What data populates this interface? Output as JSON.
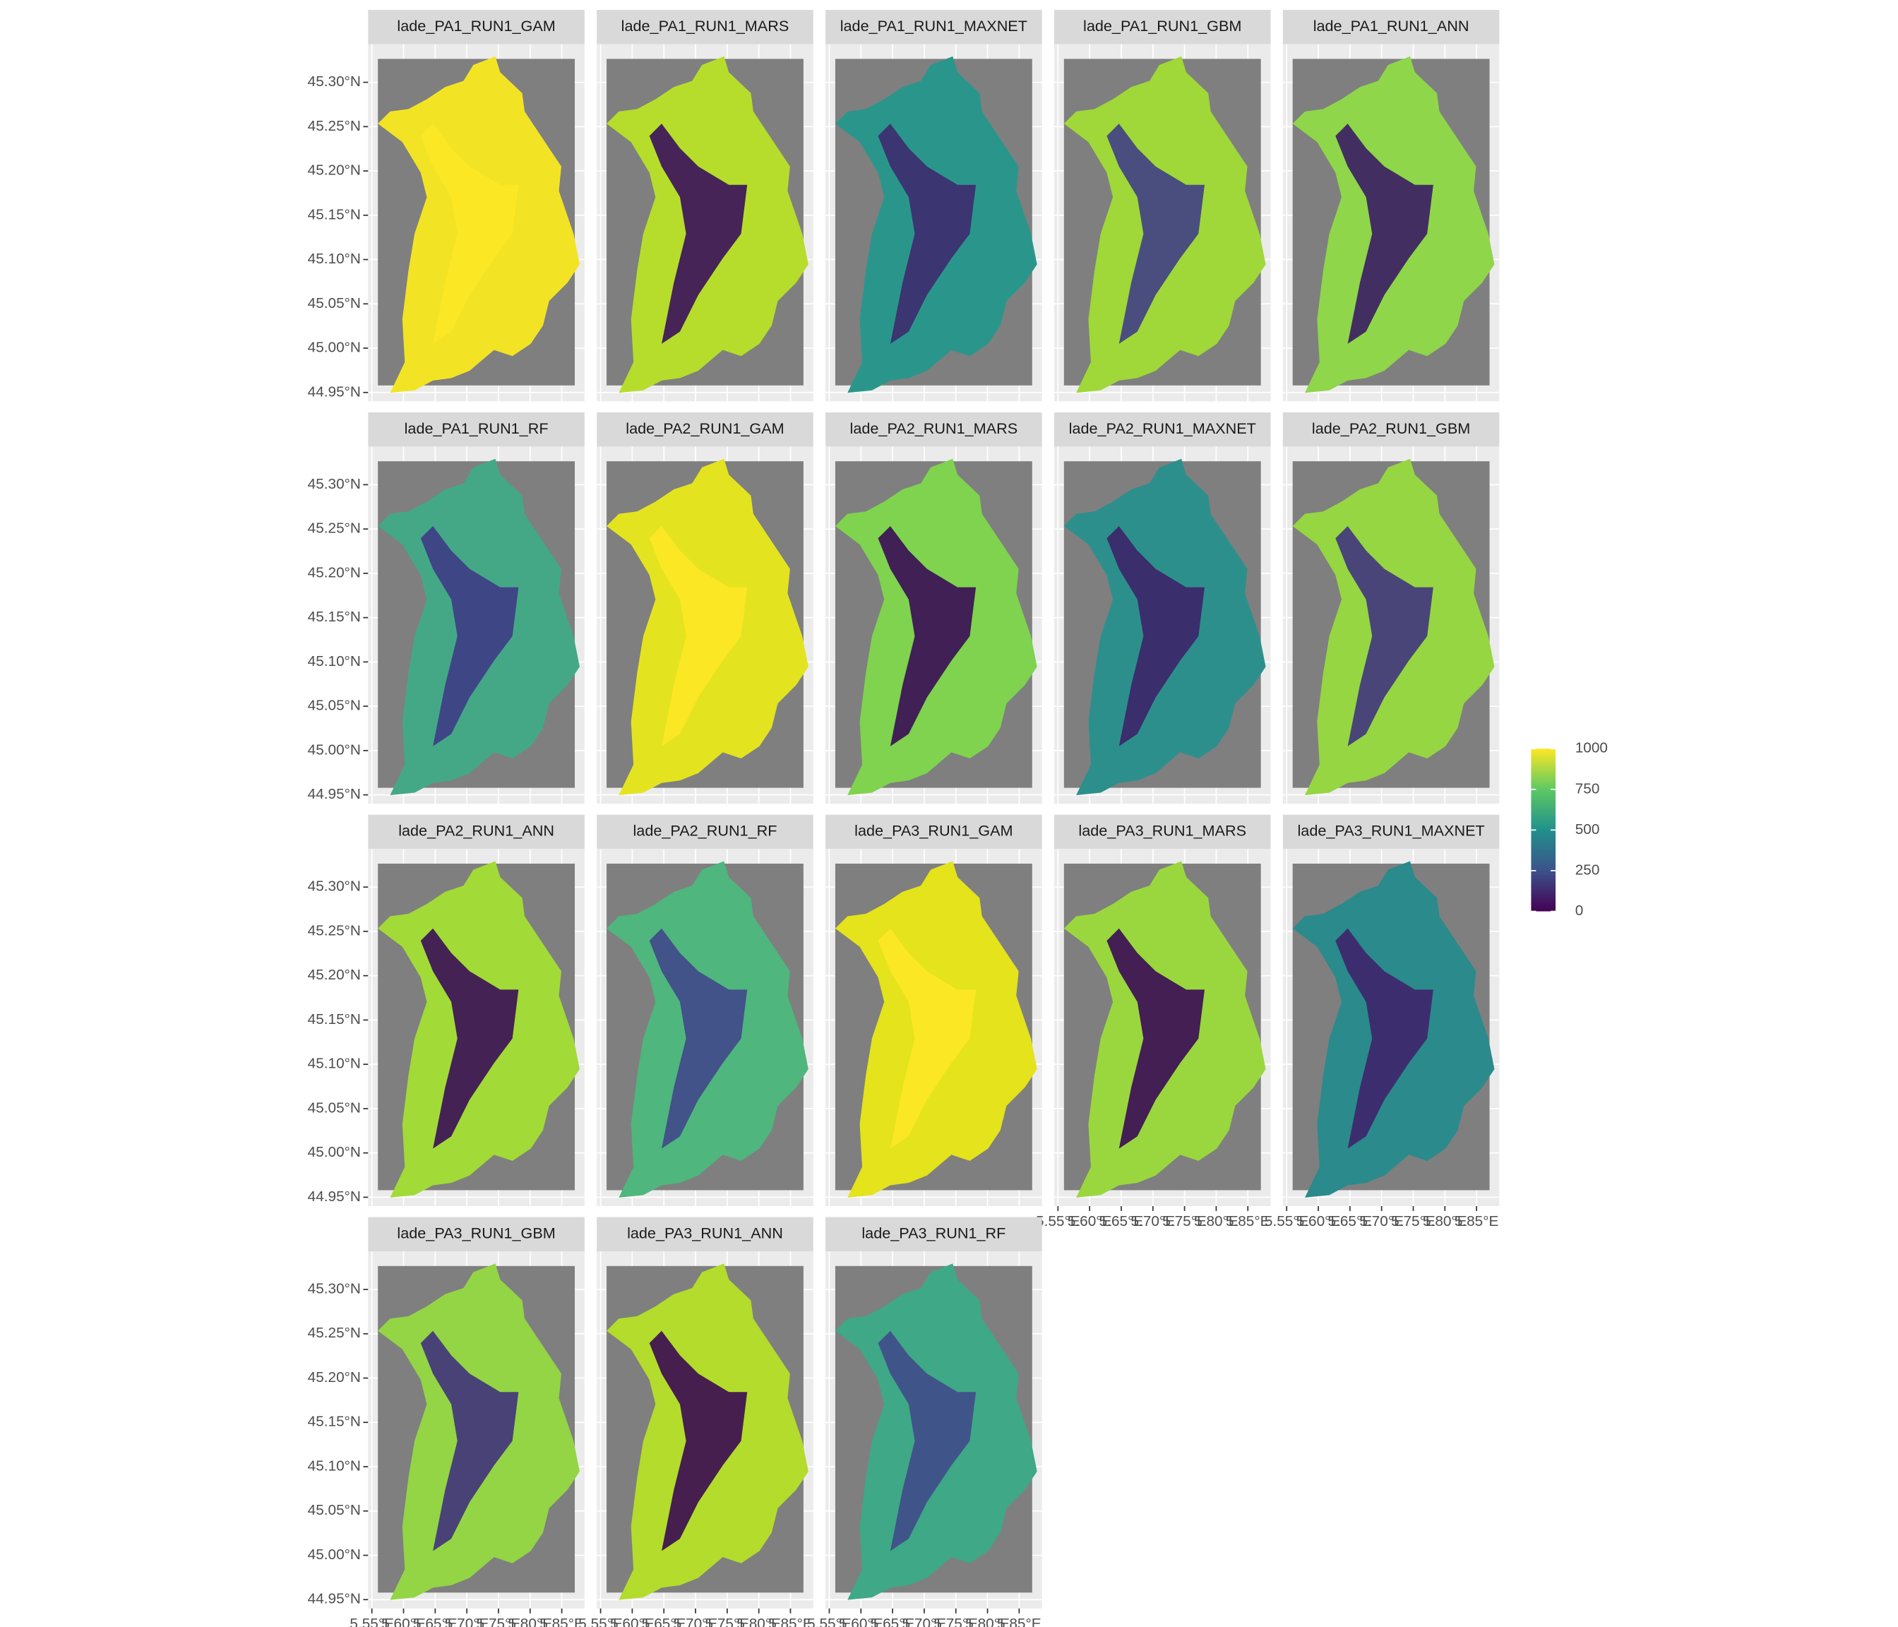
{
  "chart_data": {
    "type": "raster-facets",
    "panels": [
      {
        "title": "lade_PA1_RUN1_GAM",
        "color": "#f2e424",
        "valley": "#fde725"
      },
      {
        "title": "lade_PA1_RUN1_MARS",
        "color": "#b6dd2b",
        "valley": "#3b0f5c"
      },
      {
        "title": "lade_PA1_RUN1_MAXNET",
        "color": "#2a968b",
        "valley": "#3d2a6e"
      },
      {
        "title": "lade_PA1_RUN1_GBM",
        "color": "#9fd838",
        "valley": "#3f3f87"
      },
      {
        "title": "lade_PA1_RUN1_ANN",
        "color": "#8fd64a",
        "valley": "#3b1c64"
      },
      {
        "title": "lade_PA1_RUN1_RF",
        "color": "#44a886",
        "valley": "#3e3b86"
      },
      {
        "title": "lade_PA2_RUN1_GAM",
        "color": "#e3e41f",
        "valley": "#fde725"
      },
      {
        "title": "lade_PA2_RUN1_MARS",
        "color": "#7fd34e",
        "valley": "#3a0c57"
      },
      {
        "title": "lade_PA2_RUN1_MAXNET",
        "color": "#2d8f8c",
        "valley": "#3c2468"
      },
      {
        "title": "lade_PA2_RUN1_GBM",
        "color": "#96d642",
        "valley": "#40357e"
      },
      {
        "title": "lade_PA2_RUN1_ANN",
        "color": "#a2da37",
        "valley": "#3a0d58"
      },
      {
        "title": "lade_PA2_RUN1_RF",
        "color": "#4fb67d",
        "valley": "#3f4889"
      },
      {
        "title": "lade_PA3_RUN1_GAM",
        "color": "#e4e31c",
        "valley": "#fde725"
      },
      {
        "title": "lade_PA3_RUN1_MARS",
        "color": "#9ad73e",
        "valley": "#3a0b55"
      },
      {
        "title": "lade_PA3_RUN1_MAXNET",
        "color": "#2a8a8c",
        "valley": "#3e236a"
      },
      {
        "title": "lade_PA3_RUN1_GBM",
        "color": "#93d545",
        "valley": "#41327c"
      },
      {
        "title": "lade_PA3_RUN1_ANN",
        "color": "#b3dc2c",
        "valley": "#3a0a53"
      },
      {
        "title": "lade_PA3_RUN1_RF",
        "color": "#3fa886",
        "valley": "#3f4b8a"
      }
    ],
    "xlim": [
      5.544,
      5.886
    ],
    "xticks": [
      {
        "value": 5.55,
        "label": "5.55°E"
      },
      {
        "value": 5.6,
        "label": "5.60°E"
      },
      {
        "value": 5.65,
        "label": "5.65°E"
      },
      {
        "value": 5.7,
        "label": "5.70°E"
      },
      {
        "value": 5.75,
        "label": "5.75°E"
      },
      {
        "value": 5.8,
        "label": "5.80°E"
      },
      {
        "value": 5.85,
        "label": "5.85°E"
      }
    ],
    "ylim": [
      44.94,
      45.343
    ],
    "yticks": [
      {
        "value": 44.95,
        "label": "44.95°N"
      },
      {
        "value": 45.0,
        "label": "45.00°N"
      },
      {
        "value": 45.05,
        "label": "45.05°N"
      },
      {
        "value": 45.1,
        "label": "45.10°N"
      },
      {
        "value": 45.15,
        "label": "45.15°N"
      },
      {
        "value": 45.2,
        "label": "45.20°N"
      },
      {
        "value": 45.25,
        "label": "45.25°N"
      },
      {
        "value": 45.3,
        "label": "45.30°N"
      }
    ],
    "grid": true,
    "legend": {
      "lim": [
        0,
        1000
      ],
      "ticks": [
        0,
        250,
        500,
        750,
        1000
      ]
    }
  }
}
